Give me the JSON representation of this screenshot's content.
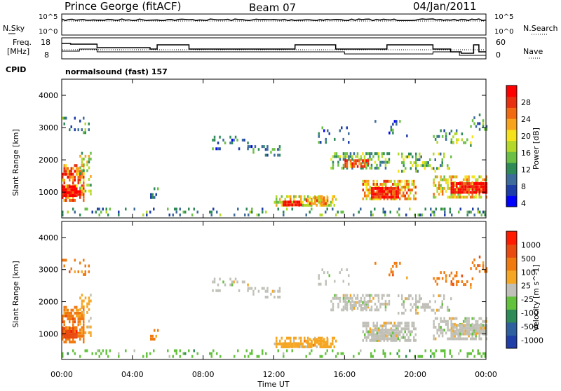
{
  "header": {
    "station": "Prince George (fitACF)",
    "beam": "Beam 07",
    "date": "04/Jan/2011"
  },
  "nsky_panel": {
    "left_label": "N.Sky",
    "right_label": "N.Search",
    "left_ticks": [
      "10^5",
      "10^0"
    ],
    "right_ticks": [
      "10^5",
      "10^0"
    ]
  },
  "freq_panel": {
    "left_label_line1": "Freq.",
    "left_label_line2": "[MHz]",
    "right_label": "Nave",
    "left_ticks": [
      "18",
      "8"
    ],
    "right_ticks": [
      "60",
      "0"
    ]
  },
  "cpid": {
    "label": "CPID",
    "value": "normalsound (fast) 157"
  },
  "chart_data": [
    {
      "type": "heatmap",
      "name": "power",
      "ylabel": "Slant Range [km]",
      "ylim": [
        200,
        4500
      ],
      "yticks": [
        "1000",
        "2000",
        "3000",
        "4000"
      ],
      "colorbar_label": "Power [dB]",
      "colorbar_ticks": [
        "28",
        "24",
        "20",
        "16",
        "12",
        "8",
        "4"
      ],
      "colorbar_colors": [
        "#0000ff",
        "#1d3ea8",
        "#3c6b9c",
        "#2e8b57",
        "#6bbf45",
        "#b4d82a",
        "#f5e21b",
        "#f7a41c",
        "#f26a10",
        "#e83010",
        "#ff0000"
      ]
    },
    {
      "type": "heatmap",
      "name": "velocity",
      "ylabel": "Slant Range [km]",
      "ylim": [
        200,
        4500
      ],
      "yticks": [
        "1000",
        "2000",
        "3000",
        "4000"
      ],
      "colorbar_label": "Velocity [m s^-1]",
      "colorbar_ticks": [
        "1000",
        "500",
        "100",
        "25",
        "-25",
        "-100",
        "-500",
        "-1000"
      ],
      "colorbar_colors": [
        "#1f3ea8",
        "#2e5f9e",
        "#2e8b57",
        "#63c23c",
        "#c0c0b8",
        "#f5a623",
        "#f07a10",
        "#e84a10",
        "#ff1a00"
      ]
    }
  ],
  "xaxis": {
    "label": "Time UT",
    "ticks": [
      "00:00",
      "04:00",
      "08:00",
      "12:00",
      "16:00",
      "20:00",
      "00:00"
    ]
  }
}
